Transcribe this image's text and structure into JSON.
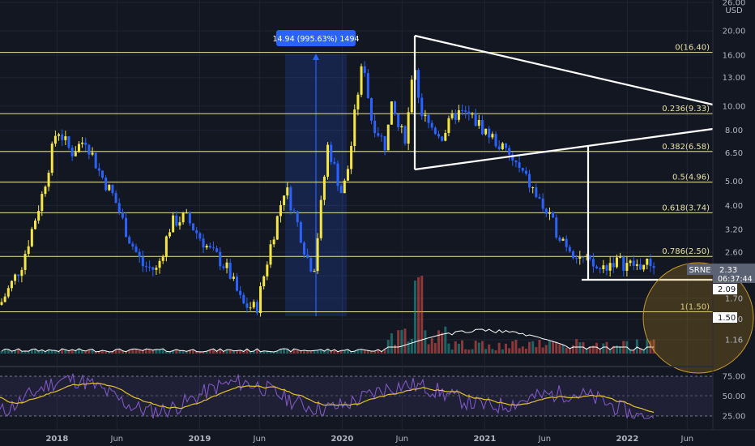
{
  "chart_data": [
    {
      "type": "candlestick",
      "symbol": "SRNE",
      "currency_label": "USD",
      "y_axis": {
        "scale": "log",
        "range": [
          1.1,
          26.0
        ],
        "ticks": [
          "26.00",
          "20.00",
          "16.00",
          "13.00",
          "10.00",
          "8.00",
          "6.50",
          "5.00",
          "4.00",
          "3.20",
          "2.60",
          "2.09",
          "1.70",
          "1.40",
          "1.16"
        ]
      },
      "x_axis": {
        "ticks": [
          "2018",
          "Jun",
          "2019",
          "Jun",
          "2020",
          "Jun",
          "2021",
          "Jun",
          "2022",
          "Jun"
        ]
      },
      "last_price": {
        "label": "SRNE",
        "value": "2.33",
        "countdown": "06:37:44"
      },
      "price_tags": [
        "2.09",
        "1.50"
      ],
      "fib_levels": [
        {
          "label": "0(16.40)",
          "value": 16.4
        },
        {
          "label": "0.236(9.33)",
          "value": 9.33
        },
        {
          "label": "0.382(6.58)",
          "value": 6.58
        },
        {
          "label": "0.5(4.96)",
          "value": 4.96
        },
        {
          "label": "0.618(3.74)",
          "value": 3.74
        },
        {
          "label": "0.786(2.50)",
          "value": 2.5
        },
        {
          "label": "1(1.50)",
          "value": 1.5
        }
      ],
      "measure_tool": {
        "label": "14.94 (995.63%) 1494",
        "from": 1.5,
        "to": 16.4
      },
      "series": [
        {
          "name": "price",
          "time": [
            2017.6,
            2017.75,
            2017.9,
            2018.0,
            2018.1,
            2018.2,
            2018.3,
            2018.4,
            2018.5,
            2018.6,
            2018.7,
            2018.8,
            2018.9,
            2019.0,
            2019.08,
            2019.12,
            2019.2,
            2019.3,
            2019.4,
            2019.5,
            2019.6,
            2019.7,
            2019.75,
            2019.8,
            2019.9,
            2020.0,
            2020.05,
            2020.1,
            2020.15,
            2020.2,
            2020.3,
            2020.35,
            2020.4,
            2020.45,
            2020.5,
            2020.55,
            2020.6,
            2020.7,
            2020.8,
            2020.9,
            2021.0,
            2021.05,
            2021.1,
            2021.2,
            2021.3,
            2021.4,
            2021.5,
            2021.6,
            2021.7,
            2021.8,
            2021.9,
            2022.0,
            2022.05,
            2022.1,
            2022.15,
            2022.2
          ],
          "close": [
            1.6,
            2.3,
            4.5,
            8.2,
            6.5,
            7.4,
            5.4,
            4.3,
            3.0,
            2.3,
            2.2,
            3.4,
            3.6,
            3.0,
            2.6,
            2.5,
            2.2,
            1.6,
            1.55,
            2.8,
            4.8,
            3.2,
            2.5,
            2.2,
            7.0,
            4.4,
            6.0,
            10.5,
            15.5,
            9.0,
            7.0,
            10.0,
            8.0,
            7.5,
            16.0,
            9.5,
            8.5,
            7.6,
            9.4,
            9.1,
            8.0,
            7.5,
            7.0,
            6.0,
            5.0,
            4.0,
            3.2,
            2.7,
            2.4,
            2.2,
            2.4,
            2.33,
            2.3,
            2.3,
            2.33,
            2.33
          ]
        },
        {
          "name": "volume"
        },
        {
          "name": "RSI",
          "ticks": [
            "75.00",
            "50.00",
            "25.00"
          ]
        }
      ]
    }
  ]
}
